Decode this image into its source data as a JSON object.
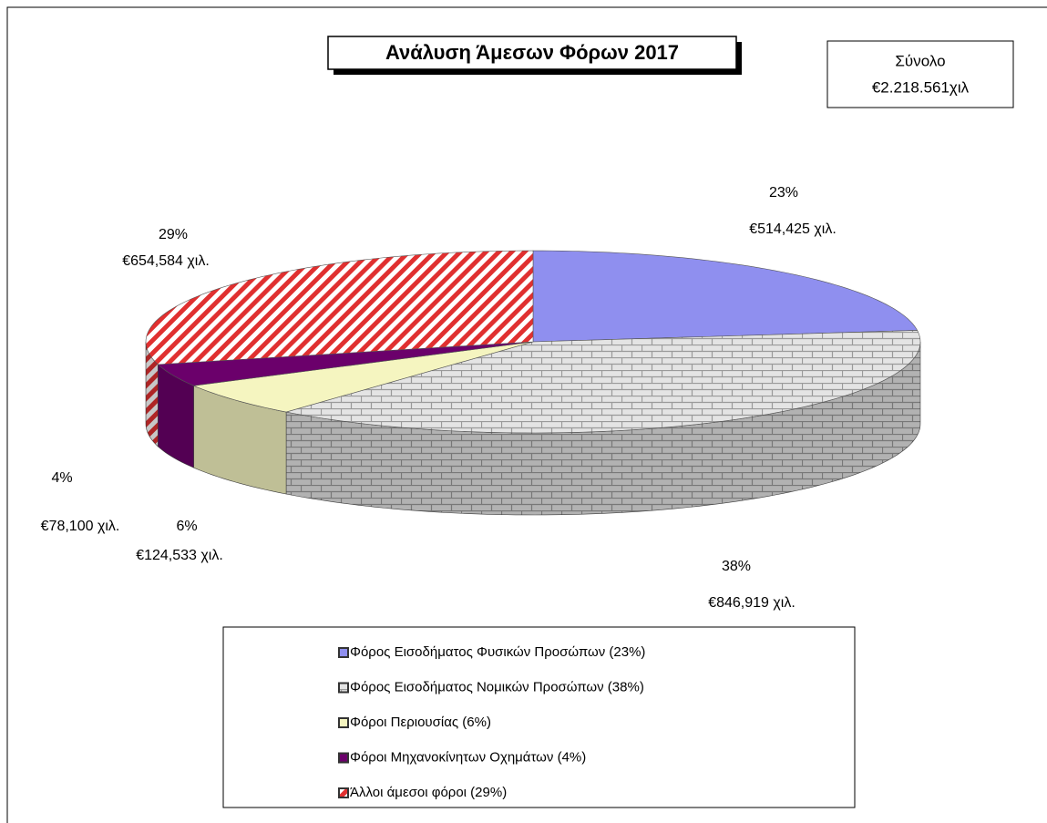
{
  "chart_data": {
    "type": "pie",
    "title": "Ανάλυση Άμεσων Φόρων 2017",
    "annotation": [
      "Σύνολο",
      "€2.218.561χιλ"
    ],
    "categories": [
      "Φόρος Εισοδήματος Φυσικών Προσώπων (23%)",
      "Φόρος Εισοδήματος Νομικών Προσώπων (38%)",
      "Φόροι Περιουσίας (6%)",
      "Φόροι Μηχανοκίνητων Οχημάτων (4%)",
      "Άλλοι άμεσοι φόροι (29%)"
    ],
    "values": [
      23,
      38,
      6,
      4,
      29
    ],
    "value_labels": [
      "23%",
      "38%",
      "6%",
      "4%",
      "29%"
    ],
    "amounts": [
      514425,
      846919,
      124533,
      78100,
      654584
    ],
    "amount_labels": [
      "€514,425 χιλ.",
      "€846,919 χιλ.",
      "€124,533 χιλ.",
      "€78,100 χιλ.",
      "€654,584 χιλ."
    ],
    "colors": [
      "#8f8fef",
      "#d8d8d8",
      "#f5f5c0",
      "#6b006b",
      "#e03030"
    ],
    "patterns": [
      "solid",
      "brick",
      "solid",
      "solid",
      "stripes"
    ],
    "legend": "bottom"
  }
}
